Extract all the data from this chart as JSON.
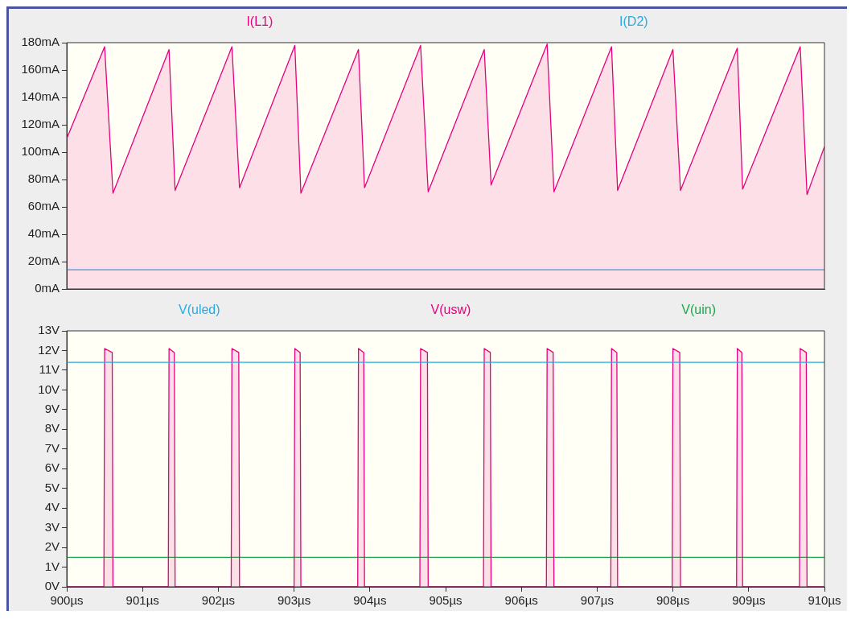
{
  "chart_data": [
    {
      "type": "area",
      "xlim": [
        900,
        910
      ],
      "ylim": [
        0,
        180
      ],
      "yticks": [
        {
          "value": 0,
          "label": "0mA"
        },
        {
          "value": 20,
          "label": "20mA"
        },
        {
          "value": 40,
          "label": "40mA"
        },
        {
          "value": 60,
          "label": "60mA"
        },
        {
          "value": 80,
          "label": "80mA"
        },
        {
          "value": 100,
          "label": "100mA"
        },
        {
          "value": 120,
          "label": "120mA"
        },
        {
          "value": 140,
          "label": "140mA"
        },
        {
          "value": 160,
          "label": "160mA"
        },
        {
          "value": 180,
          "label": "180mA"
        }
      ],
      "tick_labels": "y",
      "marker": "none",
      "series": [
        {
          "name": "I(L1)",
          "color": "#e6007e",
          "x": [
            900,
            900.5,
            900.61,
            901.35,
            901.43,
            902.18,
            902.28,
            903.01,
            903.09,
            903.85,
            903.93,
            904.67,
            904.77,
            905.51,
            905.6,
            906.34,
            906.43,
            907.19,
            907.27,
            908.0,
            908.1,
            908.85,
            908.92,
            909.68,
            909.77,
            910
          ],
          "values": [
            110,
            177,
            70,
            175,
            72,
            177,
            74,
            178,
            70,
            175,
            74,
            178,
            71,
            175,
            76,
            179,
            71,
            177,
            72,
            175,
            72,
            176,
            73,
            177,
            69,
            104
          ]
        },
        {
          "name": "I(D2)",
          "type": "line",
          "color": "#29abe2",
          "x": [
            900,
            910
          ],
          "values": [
            14,
            14
          ]
        }
      ]
    },
    {
      "type": "line",
      "xlim": [
        900,
        910
      ],
      "xticks": [
        {
          "value": 900,
          "label": "900µs"
        },
        {
          "value": 901,
          "label": "901µs"
        },
        {
          "value": 902,
          "label": "902µs"
        },
        {
          "value": 903,
          "label": "903µs"
        },
        {
          "value": 904,
          "label": "904µs"
        },
        {
          "value": 905,
          "label": "905µs"
        },
        {
          "value": 906,
          "label": "906µs"
        },
        {
          "value": 907,
          "label": "907µs"
        },
        {
          "value": 908,
          "label": "908µs"
        },
        {
          "value": 909,
          "label": "909µs"
        },
        {
          "value": 910,
          "label": "910µs"
        }
      ],
      "ylim": [
        0,
        13
      ],
      "yticks": [
        {
          "value": 0,
          "label": "0V"
        },
        {
          "value": 1,
          "label": "1V"
        },
        {
          "value": 2,
          "label": "2V"
        },
        {
          "value": 3,
          "label": "3V"
        },
        {
          "value": 4,
          "label": "4V"
        },
        {
          "value": 5,
          "label": "5V"
        },
        {
          "value": 6,
          "label": "6V"
        },
        {
          "value": 7,
          "label": "7V"
        },
        {
          "value": 8,
          "label": "8V"
        },
        {
          "value": 9,
          "label": "9V"
        },
        {
          "value": 10,
          "label": "10V"
        },
        {
          "value": 11,
          "label": "11V"
        },
        {
          "value": 12,
          "label": "12V"
        },
        {
          "value": 13,
          "label": "13V"
        }
      ],
      "marker": "none",
      "series": [
        {
          "name": "V(uled)",
          "color": "#29abe2",
          "x": [
            900,
            910
          ],
          "values": [
            11.4,
            11.4
          ]
        },
        {
          "name": "V(usw)",
          "type": "area",
          "color": "#e6007e",
          "x": [
            900,
            900.49,
            900.5,
            900.6,
            900.61,
            901.34,
            901.35,
            901.42,
            901.43,
            902.17,
            902.18,
            902.27,
            902.28,
            903.0,
            903.01,
            903.08,
            903.09,
            903.84,
            903.85,
            903.92,
            903.93,
            904.66,
            904.67,
            904.76,
            904.77,
            905.5,
            905.51,
            905.59,
            905.6,
            906.33,
            906.34,
            906.42,
            906.43,
            907.18,
            907.19,
            907.26,
            907.27,
            907.99,
            908.0,
            908.09,
            908.1,
            908.84,
            908.85,
            908.91,
            908.92,
            909.67,
            909.68,
            909.76,
            909.77,
            910
          ],
          "values": [
            0,
            0,
            12.1,
            11.9,
            0,
            0,
            12.1,
            11.9,
            0,
            0,
            12.1,
            11.9,
            0,
            0,
            12.1,
            11.9,
            0,
            0,
            12.1,
            11.9,
            0,
            0,
            12.1,
            11.9,
            0,
            0,
            12.1,
            11.9,
            0,
            0,
            12.1,
            11.9,
            0,
            0,
            12.1,
            11.9,
            0,
            0,
            12.1,
            11.9,
            0,
            0,
            12.1,
            11.9,
            0,
            0,
            12.1,
            11.9,
            0,
            0
          ]
        },
        {
          "name": "V(uin)",
          "color": "#1aa84a",
          "x": [
            900,
            910
          ],
          "values": [
            1.5,
            1.5
          ]
        }
      ]
    }
  ]
}
